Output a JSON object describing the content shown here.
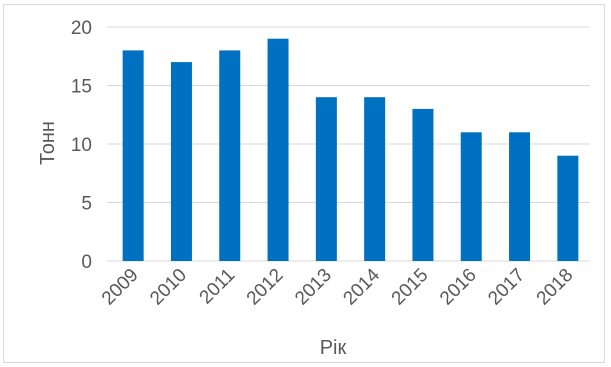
{
  "chart_data": {
    "type": "bar",
    "title": "",
    "xlabel": "Рік",
    "ylabel": "Тонн",
    "categories": [
      "2009",
      "2010",
      "2011",
      "2012",
      "2013",
      "2014",
      "2015",
      "2016",
      "2017",
      "2018"
    ],
    "values": [
      18,
      17,
      18,
      19,
      14,
      14,
      13,
      11,
      11,
      9
    ],
    "ylim": [
      0,
      20
    ],
    "yticks": [
      0,
      5,
      10,
      15,
      20
    ],
    "grid": true,
    "legend": "none",
    "bar_color": "#0070C0",
    "grid_color": "#d9d9d9",
    "text_color": "#595959"
  }
}
